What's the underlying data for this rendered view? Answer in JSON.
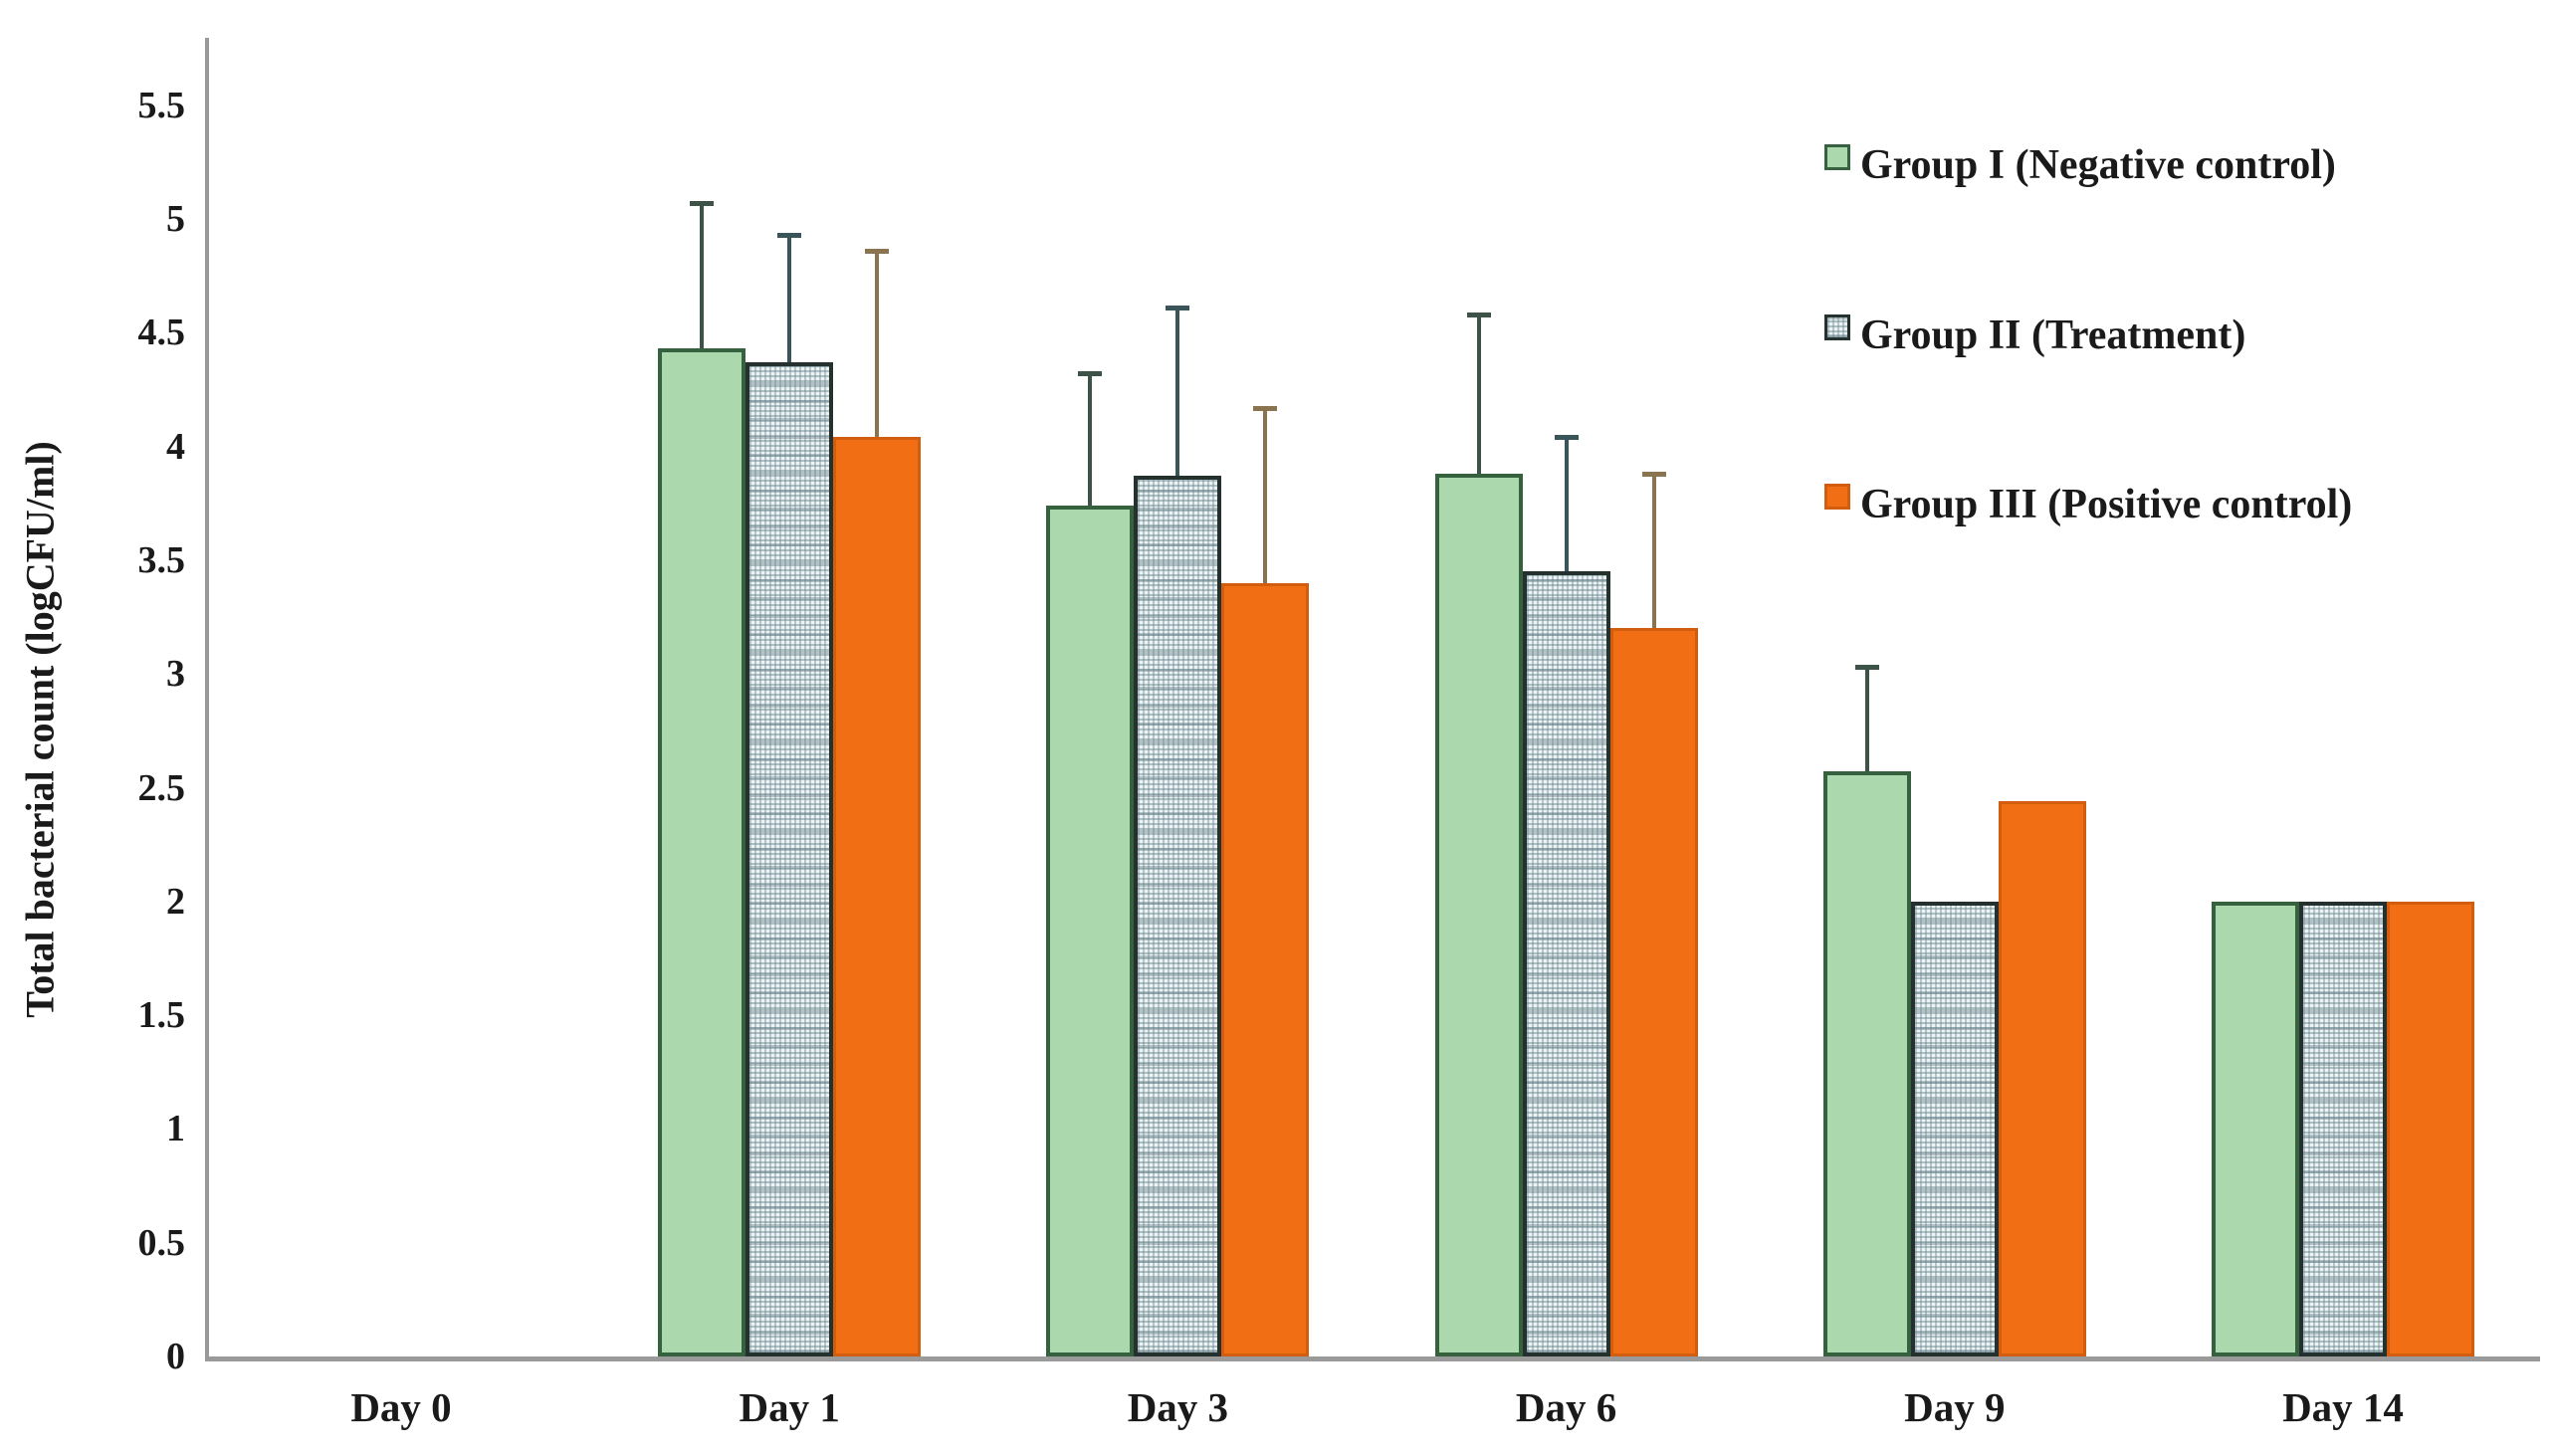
{
  "figure": {
    "background": "#ffffff",
    "axis_color": "#9a9a9a",
    "text_color": "#1a1a1a"
  },
  "chart_data": {
    "type": "bar",
    "title": "",
    "xlabel": "",
    "ylabel": "Total bacterial count (logCFU/ml)",
    "categories": [
      "Day 0",
      "Day 1",
      "Day 3",
      "Day 6",
      "Day 9",
      "Day 14"
    ],
    "series": [
      {
        "name": "Group I (Negative control)",
        "color": "#abd9ad",
        "border_color": "#35613f",
        "error_color": "#3d5347",
        "pattern": "solid",
        "values": [
          0,
          4.43,
          3.74,
          3.88,
          2.57,
          2.0
        ],
        "error_plus": [
          0,
          0.64,
          0.58,
          0.7,
          0.46,
          0
        ]
      },
      {
        "name": "Group II (Treatment)",
        "color": "#cfe0e2",
        "border_color": "#24312f",
        "error_color": "#39555a",
        "pattern": "dotted-grid",
        "values": [
          0,
          4.37,
          3.87,
          3.45,
          2.0,
          2.0
        ],
        "error_plus": [
          0,
          0.56,
          0.74,
          0.59,
          0,
          0
        ]
      },
      {
        "name": "Group III (Positive control)",
        "color": "#f26e14",
        "border_color": "#d35d0e",
        "error_color": "#8a734f",
        "pattern": "solid",
        "values": [
          0,
          4.04,
          3.4,
          3.2,
          2.44,
          2.0
        ],
        "error_plus": [
          0,
          0.82,
          0.77,
          0.68,
          0,
          0
        ]
      }
    ],
    "ylim": [
      0,
      5.75
    ],
    "y_tick_step": 0.5,
    "y_tick_labels": [
      "0",
      "0.5",
      "1",
      "1.5",
      "2",
      "2.5",
      "3",
      "3.5",
      "4",
      "4.5",
      "5",
      "5.5"
    ],
    "grid": false,
    "legend_position": "top-right",
    "error_bars": "plus-only"
  }
}
